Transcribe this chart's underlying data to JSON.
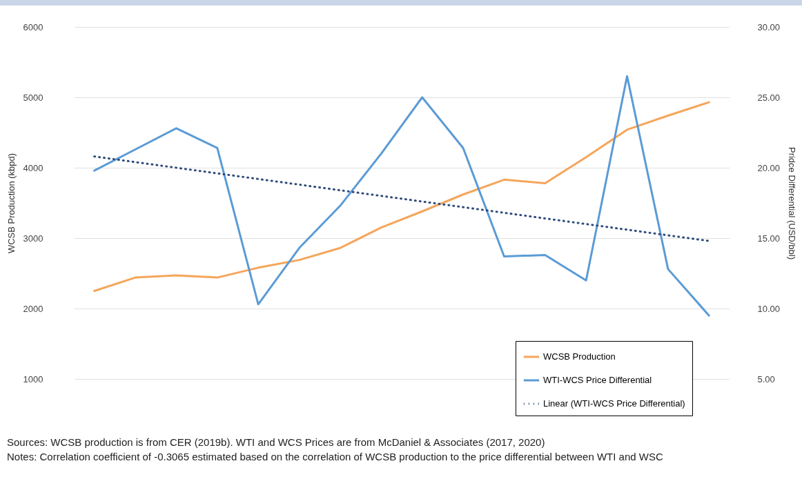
{
  "chart_data": {
    "type": "line",
    "ylabel": "WCSB Production (kbpd)",
    "y2label": "Pridce Differential (USD/bbl)",
    "categories": [
      null,
      null,
      null,
      null,
      null,
      null,
      null,
      null,
      null,
      null,
      null,
      null,
      null,
      null,
      null,
      null
    ],
    "series": [
      {
        "name": "WCSB Production",
        "color": "#f5a55a",
        "values": [
          2250,
          2440,
          2470,
          2440,
          2580,
          2690,
          2860,
          3150,
          3380,
          3620,
          3830,
          3780,
          4150,
          4540,
          4740,
          4930
        ]
      },
      {
        "name": "WTI-WCS Price Differential",
        "color": "#5b9bd5",
        "axis": "y2",
        "values": [
          19.8,
          21.3,
          22.8,
          21.4,
          10.3,
          14.3,
          17.3,
          21.0,
          25.0,
          21.4,
          13.7,
          13.8,
          12.0,
          26.5,
          12.8,
          9.5
        ]
      },
      {
        "name": "Linear (WTI-WCS Price Differential)",
        "color": "#2e4a7a",
        "axis": "y2",
        "line_style": "dotted",
        "values": [
          20.8,
          20.4,
          20.0,
          19.6,
          19.2,
          18.8,
          18.4,
          18.0,
          17.6,
          17.2,
          16.8,
          16.4,
          16.0,
          15.6,
          15.2,
          14.8
        ]
      }
    ],
    "ylim": [
      1000,
      6000
    ],
    "yticks": [
      1000,
      2000,
      3000,
      4000,
      5000,
      6000
    ],
    "y2lim": [
      5,
      30
    ],
    "y2ticks": [
      {
        "value": 5,
        "label": "5.00"
      },
      {
        "value": 10,
        "label": "10.00"
      },
      {
        "value": 15,
        "label": "15.00"
      },
      {
        "value": 20,
        "label": "20.00"
      },
      {
        "value": 25,
        "label": "25.00"
      },
      {
        "value": 30,
        "label": "30.00"
      }
    ],
    "grid": "y",
    "legend": "bottom right",
    "tick_labels": "y",
    "annotations": [
      "Sources: WCSB production is from CER (2019b). WTI and WCS Prices are from McDaniel & Associates (2017, 2020)",
      "Notes: Correlation coefficient of -0.3065 estimated based on the correlation of WCSB production to the price differential between WTI and WSC"
    ]
  }
}
